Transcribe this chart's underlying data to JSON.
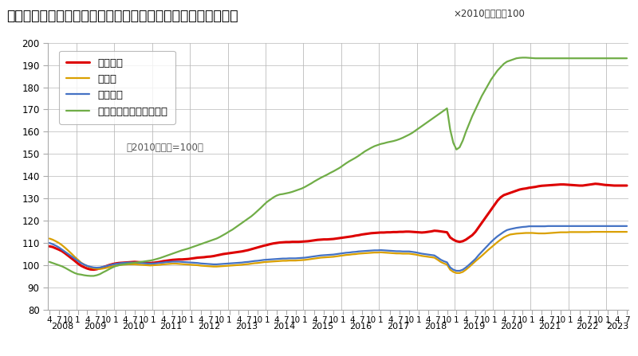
{
  "title": "＜不動産価格指数（住宅）（令和５年９月分・季節調整値）＞",
  "subtitle": "×2010年平均＝100",
  "note": "（2010年平均=100）",
  "legend": [
    "住宅総合",
    "住宅地",
    "戸建住宅",
    "マンション（区分所有）"
  ],
  "colors": [
    "#dd0000",
    "#daa000",
    "#4472c4",
    "#70ad47"
  ],
  "linewidths": [
    2.2,
    1.6,
    1.6,
    1.6
  ],
  "ylim": [
    80,
    200
  ],
  "yticks": [
    80,
    90,
    100,
    110,
    120,
    130,
    140,
    150,
    160,
    170,
    180,
    190,
    200
  ],
  "start_year": 2008,
  "start_month": 4,
  "housing_total": [
    108.5,
    108.2,
    107.6,
    107.0,
    106.3,
    105.3,
    104.2,
    103.1,
    102.0,
    100.8,
    99.8,
    99.1,
    98.5,
    98.1,
    98.0,
    98.2,
    98.6,
    99.1,
    99.6,
    100.1,
    100.5,
    100.8,
    101.0,
    101.1,
    101.2,
    101.3,
    101.4,
    101.5,
    101.4,
    101.3,
    101.2,
    101.1,
    101.0,
    101.1,
    101.3,
    101.5,
    101.8,
    102.0,
    102.2,
    102.4,
    102.5,
    102.6,
    102.6,
    102.7,
    102.8,
    103.0,
    103.2,
    103.4,
    103.5,
    103.6,
    103.8,
    103.9,
    104.1,
    104.4,
    104.7,
    105.0,
    105.2,
    105.4,
    105.6,
    105.8,
    106.0,
    106.2,
    106.5,
    106.8,
    107.2,
    107.6,
    108.0,
    108.4,
    108.8,
    109.1,
    109.5,
    109.8,
    110.0,
    110.2,
    110.3,
    110.4,
    110.4,
    110.5,
    110.5,
    110.5,
    110.6,
    110.7,
    110.8,
    111.0,
    111.2,
    111.4,
    111.5,
    111.6,
    111.6,
    111.7,
    111.8,
    112.0,
    112.2,
    112.4,
    112.6,
    112.8,
    113.0,
    113.3,
    113.5,
    113.8,
    114.0,
    114.2,
    114.4,
    114.5,
    114.6,
    114.7,
    114.7,
    114.8,
    114.8,
    114.9,
    114.9,
    115.0,
    115.0,
    115.1,
    115.1,
    115.0,
    114.9,
    114.8,
    114.7,
    114.8,
    115.0,
    115.2,
    115.5,
    115.4,
    115.2,
    115.0,
    114.8,
    112.5,
    111.5,
    110.8,
    110.5,
    110.8,
    111.5,
    112.5,
    113.5,
    115.0,
    117.0,
    119.0,
    121.0,
    123.0,
    125.0,
    127.0,
    129.0,
    130.5,
    131.5,
    132.0,
    132.5,
    133.0,
    133.5,
    134.0,
    134.3,
    134.5,
    134.8,
    135.0,
    135.2,
    135.5,
    135.7,
    135.8,
    135.9,
    136.0,
    136.1,
    136.2,
    136.3,
    136.3,
    136.2,
    136.1,
    136.0,
    135.9,
    135.8,
    135.8,
    136.0,
    136.2,
    136.4,
    136.6,
    136.5,
    136.3,
    136.1,
    136.0,
    135.9,
    135.8,
    135.8,
    135.8,
    135.8,
    135.8
  ],
  "land": [
    112.0,
    111.5,
    110.8,
    110.0,
    109.0,
    107.8,
    106.5,
    105.2,
    103.8,
    102.5,
    101.2,
    100.3,
    99.6,
    99.0,
    98.6,
    98.4,
    98.3,
    98.5,
    98.8,
    99.2,
    99.5,
    99.8,
    100.0,
    100.2,
    100.3,
    100.4,
    100.4,
    100.4,
    100.3,
    100.2,
    100.1,
    100.0,
    99.9,
    100.0,
    100.1,
    100.2,
    100.4,
    100.5,
    100.6,
    100.7,
    100.7,
    100.6,
    100.5,
    100.4,
    100.3,
    100.2,
    100.1,
    100.0,
    99.8,
    99.7,
    99.6,
    99.5,
    99.4,
    99.4,
    99.5,
    99.6,
    99.7,
    99.8,
    99.9,
    100.0,
    100.1,
    100.2,
    100.4,
    100.5,
    100.7,
    100.9,
    101.0,
    101.2,
    101.4,
    101.5,
    101.6,
    101.7,
    101.8,
    101.9,
    102.0,
    102.0,
    102.1,
    102.1,
    102.1,
    102.2,
    102.3,
    102.4,
    102.6,
    102.8,
    103.0,
    103.2,
    103.4,
    103.5,
    103.6,
    103.7,
    103.8,
    104.0,
    104.2,
    104.4,
    104.6,
    104.7,
    104.9,
    105.0,
    105.2,
    105.3,
    105.4,
    105.5,
    105.6,
    105.7,
    105.7,
    105.8,
    105.7,
    105.6,
    105.5,
    105.4,
    105.3,
    105.3,
    105.2,
    105.2,
    105.2,
    105.0,
    104.8,
    104.5,
    104.2,
    104.0,
    103.8,
    103.6,
    103.4,
    102.5,
    101.5,
    100.8,
    100.3,
    98.0,
    97.0,
    96.5,
    96.5,
    97.0,
    98.0,
    99.2,
    100.5,
    101.8,
    103.0,
    104.2,
    105.5,
    106.8,
    108.0,
    109.2,
    110.4,
    111.5,
    112.5,
    113.2,
    113.8,
    114.0,
    114.2,
    114.3,
    114.4,
    114.5,
    114.5,
    114.5,
    114.4,
    114.3,
    114.3,
    114.3,
    114.4,
    114.5,
    114.6,
    114.7,
    114.8,
    114.8,
    114.8,
    114.9,
    114.9,
    114.9,
    114.9,
    114.9,
    114.9,
    114.9,
    115.0,
    115.0,
    115.0,
    115.0,
    115.0,
    115.0,
    115.0,
    115.0,
    115.0,
    115.0,
    115.0,
    115.0
  ],
  "detached": [
    110.0,
    109.5,
    108.8,
    108.0,
    107.0,
    106.0,
    105.0,
    104.0,
    103.0,
    102.0,
    101.0,
    100.3,
    99.7,
    99.3,
    99.0,
    98.9,
    99.0,
    99.3,
    99.6,
    100.0,
    100.3,
    100.6,
    100.8,
    101.0,
    101.1,
    101.2,
    101.2,
    101.2,
    101.1,
    101.0,
    100.9,
    100.8,
    100.7,
    100.8,
    100.9,
    101.1,
    101.2,
    101.4,
    101.5,
    101.6,
    101.6,
    101.6,
    101.5,
    101.4,
    101.3,
    101.2,
    101.1,
    101.0,
    100.8,
    100.7,
    100.6,
    100.5,
    100.4,
    100.4,
    100.5,
    100.6,
    100.7,
    100.8,
    100.9,
    101.0,
    101.1,
    101.2,
    101.4,
    101.5,
    101.7,
    101.9,
    102.0,
    102.2,
    102.4,
    102.5,
    102.6,
    102.7,
    102.8,
    102.9,
    103.0,
    103.0,
    103.1,
    103.1,
    103.1,
    103.2,
    103.3,
    103.4,
    103.6,
    103.8,
    104.0,
    104.2,
    104.4,
    104.5,
    104.6,
    104.7,
    104.8,
    105.0,
    105.2,
    105.4,
    105.6,
    105.7,
    105.9,
    106.0,
    106.2,
    106.3,
    106.4,
    106.5,
    106.6,
    106.7,
    106.7,
    106.8,
    106.7,
    106.6,
    106.5,
    106.4,
    106.3,
    106.3,
    106.2,
    106.2,
    106.2,
    106.0,
    105.8,
    105.5,
    105.2,
    105.0,
    104.8,
    104.6,
    104.4,
    103.5,
    102.5,
    101.8,
    101.3,
    99.0,
    98.0,
    97.5,
    97.5,
    98.0,
    99.0,
    100.2,
    101.5,
    102.8,
    104.5,
    106.0,
    107.5,
    109.0,
    110.5,
    111.8,
    113.0,
    114.0,
    115.0,
    115.8,
    116.2,
    116.5,
    116.8,
    117.0,
    117.2,
    117.3,
    117.5,
    117.5,
    117.5,
    117.5,
    117.5,
    117.5,
    117.6,
    117.6,
    117.6,
    117.6,
    117.6,
    117.6,
    117.6,
    117.6,
    117.6,
    117.6,
    117.6,
    117.6,
    117.6,
    117.6,
    117.6,
    117.6,
    117.6,
    117.6,
    117.6,
    117.6,
    117.6,
    117.6,
    117.6,
    117.6,
    117.6,
    117.6
  ],
  "mansion": [
    101.5,
    101.0,
    100.5,
    100.0,
    99.5,
    98.8,
    98.0,
    97.2,
    96.5,
    96.0,
    95.8,
    95.5,
    95.3,
    95.2,
    95.2,
    95.5,
    96.0,
    96.8,
    97.5,
    98.3,
    99.0,
    99.6,
    100.0,
    100.3,
    100.5,
    100.7,
    100.9,
    101.1,
    101.3,
    101.5,
    101.7,
    101.9,
    102.1,
    102.4,
    102.8,
    103.2,
    103.7,
    104.2,
    104.7,
    105.2,
    105.7,
    106.2,
    106.7,
    107.1,
    107.5,
    108.0,
    108.5,
    109.0,
    109.5,
    110.0,
    110.5,
    111.0,
    111.5,
    112.0,
    112.7,
    113.5,
    114.3,
    115.2,
    116.0,
    117.0,
    118.0,
    119.0,
    120.0,
    121.0,
    122.0,
    123.2,
    124.5,
    125.8,
    127.2,
    128.5,
    129.5,
    130.5,
    131.3,
    131.8,
    132.0,
    132.3,
    132.6,
    133.0,
    133.5,
    134.0,
    134.5,
    135.2,
    136.0,
    136.8,
    137.7,
    138.5,
    139.3,
    140.0,
    140.7,
    141.5,
    142.2,
    143.0,
    143.8,
    144.8,
    145.8,
    146.7,
    147.5,
    148.3,
    149.2,
    150.2,
    151.2,
    152.0,
    152.8,
    153.5,
    154.0,
    154.5,
    154.8,
    155.2,
    155.5,
    155.8,
    156.2,
    156.7,
    157.3,
    158.0,
    158.7,
    159.5,
    160.5,
    161.5,
    162.5,
    163.5,
    164.5,
    165.5,
    166.5,
    167.5,
    168.5,
    169.5,
    170.5,
    161.0,
    155.0,
    152.0,
    153.0,
    156.0,
    160.0,
    163.5,
    167.0,
    170.0,
    173.0,
    176.0,
    178.5,
    181.0,
    183.5,
    185.5,
    187.5,
    189.0,
    190.5,
    191.5,
    192.0,
    192.5,
    193.0,
    193.2,
    193.3,
    193.3,
    193.2,
    193.1,
    193.0,
    193.0,
    193.0,
    193.0,
    193.0,
    193.0,
    193.0,
    193.0,
    193.0,
    193.0,
    193.0,
    193.0,
    193.0,
    193.0,
    193.0,
    193.0,
    193.0,
    193.0,
    193.0,
    193.0,
    193.0,
    193.0,
    193.0,
    193.0,
    193.0,
    193.0,
    193.0,
    193.0,
    193.0,
    193.0
  ]
}
